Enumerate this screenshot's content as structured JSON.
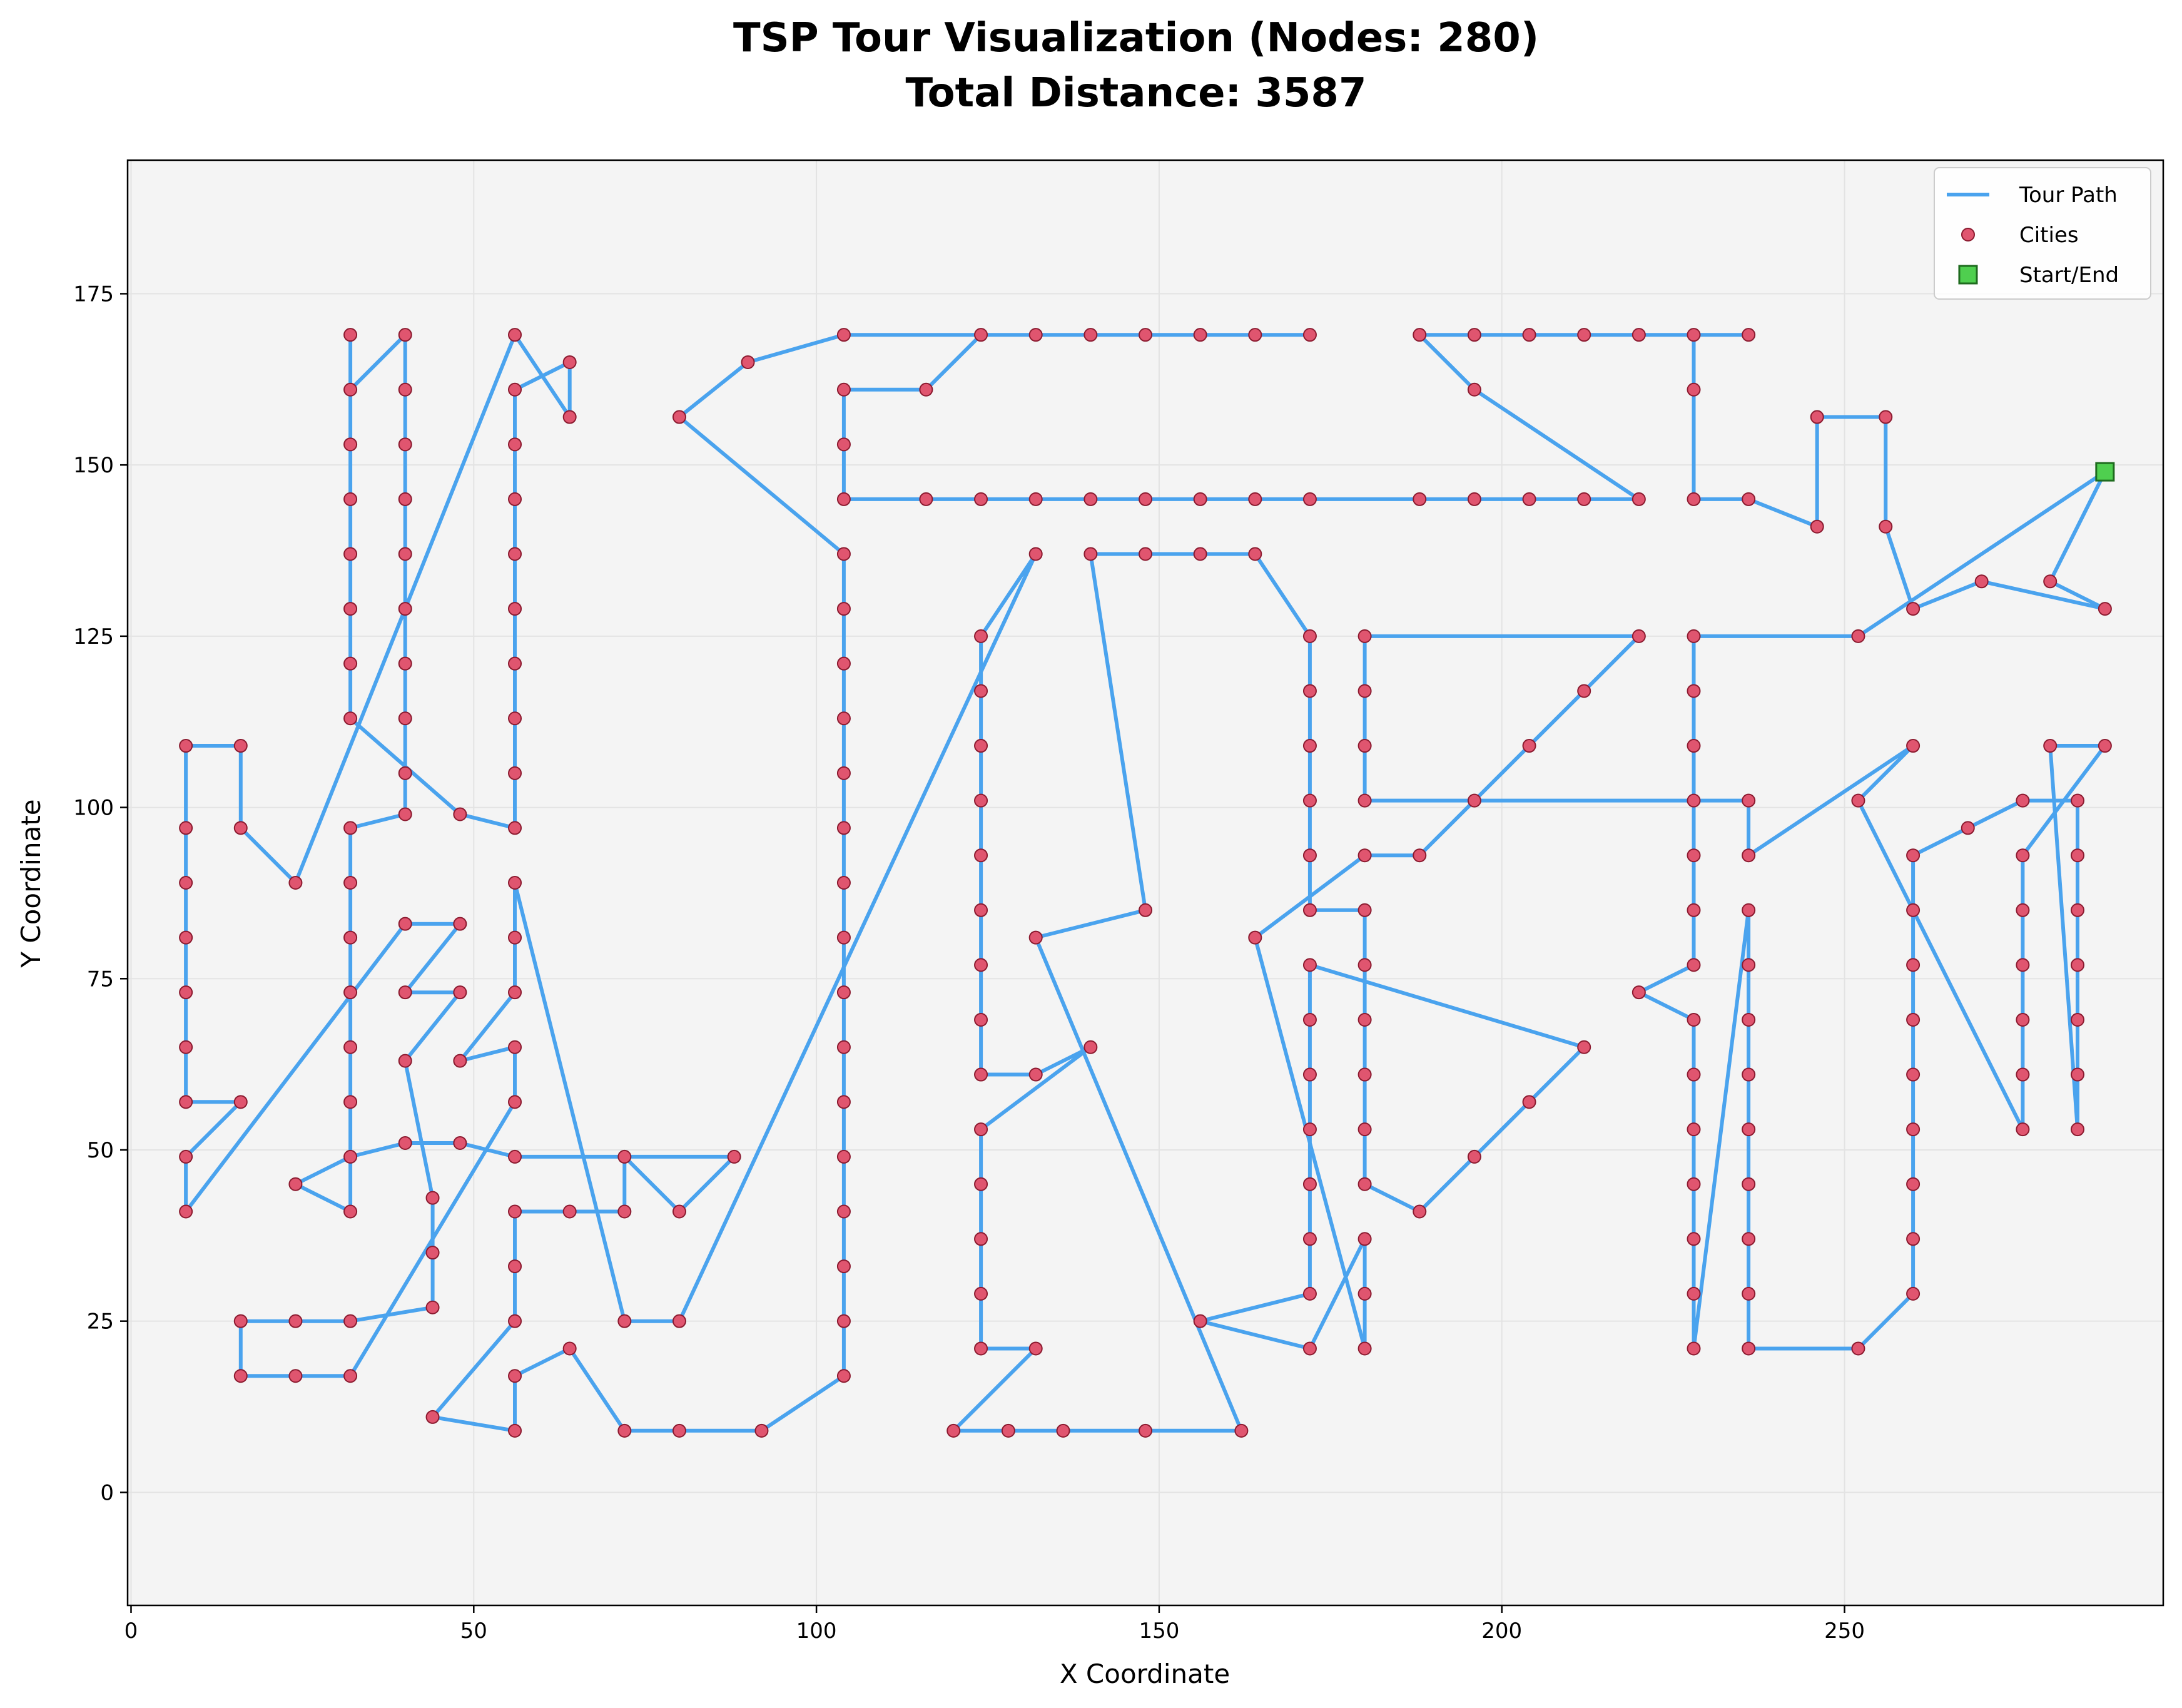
{
  "chart_data": {
    "type": "line",
    "title": "TSP Tour Visualization (Nodes: 280)",
    "subtitle": "Total Distance: 3587",
    "xlabel": "X Coordinate",
    "ylabel": "Y Coordinate",
    "xlim": [
      -0.5,
      296.5
    ],
    "ylim": [
      -16.5,
      194.5
    ],
    "xticks": [
      0,
      50,
      100,
      150,
      200,
      250
    ],
    "yticks": [
      0,
      25,
      50,
      75,
      100,
      125,
      150,
      175
    ],
    "grid": true,
    "legend_position": "top-right",
    "legend": [
      {
        "label": "Tour Path",
        "marker": "line"
      },
      {
        "label": "Cities",
        "marker": "circle"
      },
      {
        "label": "Start/End",
        "marker": "square"
      }
    ],
    "colors": {
      "path": "#4aa3ee",
      "city_fill": "#e0556f",
      "city_edge": "#8b1a2f",
      "start_fill": "#4fcf4f",
      "start_edge": "#1e6b1e",
      "plot_bg": "#f4f4f4",
      "grid": "#e3e3e3"
    },
    "start": [
      288,
      149
    ],
    "tour": [
      [
        288,
        149
      ],
      [
        280,
        133
      ],
      [
        288,
        129
      ],
      [
        270,
        133
      ],
      [
        260,
        129
      ],
      [
        256,
        141
      ],
      [
        256,
        157
      ],
      [
        246,
        157
      ],
      [
        246,
        141
      ],
      [
        236,
        145
      ],
      [
        228,
        145
      ],
      [
        228,
        161
      ],
      [
        228,
        169
      ],
      [
        236,
        169
      ],
      [
        220,
        169
      ],
      [
        212,
        169
      ],
      [
        204,
        169
      ],
      [
        196,
        169
      ],
      [
        188,
        169
      ],
      [
        196,
        161
      ],
      [
        220,
        145
      ],
      [
        212,
        145
      ],
      [
        204,
        145
      ],
      [
        196,
        145
      ],
      [
        188,
        145
      ],
      [
        172,
        145
      ],
      [
        164,
        145
      ],
      [
        156,
        145
      ],
      [
        148,
        145
      ],
      [
        140,
        145
      ],
      [
        132,
        145
      ],
      [
        124,
        145
      ],
      [
        116,
        145
      ],
      [
        104,
        145
      ],
      [
        104,
        153
      ],
      [
        104,
        161
      ],
      [
        116,
        161
      ],
      [
        124,
        169
      ],
      [
        132,
        169
      ],
      [
        140,
        169
      ],
      [
        148,
        169
      ],
      [
        156,
        169
      ],
      [
        164,
        169
      ],
      [
        172,
        169
      ],
      [
        104,
        169
      ],
      [
        90,
        165
      ],
      [
        80,
        157
      ],
      [
        104,
        137
      ],
      [
        104,
        129
      ],
      [
        104,
        121
      ],
      [
        104,
        113
      ],
      [
        104,
        105
      ],
      [
        104,
        97
      ],
      [
        104,
        89
      ],
      [
        104,
        81
      ],
      [
        104,
        73
      ],
      [
        104,
        65
      ],
      [
        104,
        57
      ],
      [
        104,
        49
      ],
      [
        104,
        41
      ],
      [
        104,
        33
      ],
      [
        104,
        25
      ],
      [
        104,
        17
      ],
      [
        92,
        9
      ],
      [
        80,
        9
      ],
      [
        72,
        9
      ],
      [
        64,
        21
      ],
      [
        56,
        17
      ],
      [
        56,
        9
      ],
      [
        44,
        11
      ],
      [
        56,
        25
      ],
      [
        56,
        33
      ],
      [
        56,
        41
      ],
      [
        64,
        41
      ],
      [
        72,
        41
      ],
      [
        72,
        49
      ],
      [
        80,
        41
      ],
      [
        88,
        49
      ],
      [
        56,
        49
      ],
      [
        48,
        51
      ],
      [
        40,
        51
      ],
      [
        32,
        49
      ],
      [
        24,
        45
      ],
      [
        32,
        41
      ],
      [
        32,
        49
      ],
      [
        32,
        57
      ],
      [
        32,
        65
      ],
      [
        32,
        73
      ],
      [
        32,
        81
      ],
      [
        32,
        89
      ],
      [
        32,
        97
      ],
      [
        40,
        99
      ],
      [
        40,
        105
      ],
      [
        40,
        113
      ],
      [
        40,
        121
      ],
      [
        40,
        129
      ],
      [
        40,
        137
      ],
      [
        40,
        145
      ],
      [
        40,
        153
      ],
      [
        40,
        161
      ],
      [
        40,
        169
      ],
      [
        32,
        161
      ],
      [
        32,
        169
      ],
      [
        32,
        153
      ],
      [
        32,
        145
      ],
      [
        32,
        137
      ],
      [
        32,
        129
      ],
      [
        32,
        121
      ],
      [
        32,
        113
      ],
      [
        48,
        99
      ],
      [
        56,
        97
      ],
      [
        56,
        105
      ],
      [
        56,
        113
      ],
      [
        56,
        121
      ],
      [
        56,
        129
      ],
      [
        56,
        137
      ],
      [
        56,
        145
      ],
      [
        56,
        153
      ],
      [
        56,
        161
      ],
      [
        64,
        165
      ],
      [
        64,
        157
      ],
      [
        56,
        169
      ],
      [
        24,
        89
      ],
      [
        16,
        97
      ],
      [
        16,
        109
      ],
      [
        8,
        109
      ],
      [
        8,
        97
      ],
      [
        8,
        89
      ],
      [
        8,
        81
      ],
      [
        8,
        73
      ],
      [
        8,
        65
      ],
      [
        8,
        57
      ],
      [
        16,
        57
      ],
      [
        8,
        49
      ],
      [
        8,
        41
      ],
      [
        40,
        83
      ],
      [
        48,
        83
      ],
      [
        40,
        73
      ],
      [
        48,
        73
      ],
      [
        40,
        63
      ],
      [
        44,
        43
      ],
      [
        44,
        35
      ],
      [
        44,
        27
      ],
      [
        32,
        25
      ],
      [
        24,
        25
      ],
      [
        16,
        25
      ],
      [
        16,
        17
      ],
      [
        24,
        17
      ],
      [
        32,
        17
      ],
      [
        56,
        57
      ],
      [
        56,
        65
      ],
      [
        48,
        63
      ],
      [
        56,
        73
      ],
      [
        56,
        81
      ],
      [
        56,
        89
      ],
      [
        72,
        25
      ],
      [
        80,
        25
      ],
      [
        132,
        137
      ],
      [
        124,
        125
      ],
      [
        124,
        117
      ],
      [
        124,
        109
      ],
      [
        124,
        101
      ],
      [
        124,
        93
      ],
      [
        124,
        85
      ],
      [
        124,
        77
      ],
      [
        124,
        69
      ],
      [
        124,
        61
      ],
      [
        132,
        61
      ],
      [
        140,
        65
      ],
      [
        124,
        53
      ],
      [
        124,
        45
      ],
      [
        124,
        37
      ],
      [
        124,
        29
      ],
      [
        124,
        21
      ],
      [
        132,
        21
      ],
      [
        120,
        9
      ],
      [
        128,
        9
      ],
      [
        136,
        9
      ],
      [
        148,
        9
      ],
      [
        162,
        9
      ],
      [
        132,
        81
      ],
      [
        148,
        85
      ],
      [
        140,
        137
      ],
      [
        148,
        137
      ],
      [
        156,
        137
      ],
      [
        164,
        137
      ],
      [
        172,
        125
      ],
      [
        172,
        117
      ],
      [
        172,
        109
      ],
      [
        172,
        101
      ],
      [
        172,
        93
      ],
      [
        172,
        85
      ],
      [
        180,
        85
      ],
      [
        180,
        77
      ],
      [
        180,
        69
      ],
      [
        180,
        61
      ],
      [
        180,
        53
      ],
      [
        180,
        45
      ],
      [
        188,
        41
      ],
      [
        196,
        49
      ],
      [
        204,
        57
      ],
      [
        212,
        65
      ],
      [
        172,
        77
      ],
      [
        172,
        69
      ],
      [
        172,
        61
      ],
      [
        172,
        53
      ],
      [
        172,
        45
      ],
      [
        172,
        37
      ],
      [
        172,
        29
      ],
      [
        156,
        25
      ],
      [
        172,
        21
      ],
      [
        180,
        37
      ],
      [
        180,
        29
      ],
      [
        180,
        21
      ],
      [
        164,
        81
      ],
      [
        180,
        93
      ],
      [
        188,
        93
      ],
      [
        196,
        101
      ],
      [
        204,
        109
      ],
      [
        212,
        117
      ],
      [
        220,
        125
      ],
      [
        180,
        125
      ],
      [
        180,
        117
      ],
      [
        180,
        109
      ],
      [
        180,
        101
      ],
      [
        228,
        101
      ],
      [
        236,
        101
      ],
      [
        236,
        93
      ],
      [
        260,
        109
      ],
      [
        252,
        101
      ],
      [
        276,
        53
      ],
      [
        276,
        61
      ],
      [
        276,
        69
      ],
      [
        276,
        77
      ],
      [
        276,
        85
      ],
      [
        276,
        93
      ],
      [
        288,
        109
      ],
      [
        280,
        109
      ],
      [
        284,
        53
      ],
      [
        284,
        61
      ],
      [
        284,
        69
      ],
      [
        284,
        77
      ],
      [
        284,
        85
      ],
      [
        284,
        93
      ],
      [
        284,
        101
      ],
      [
        276,
        101
      ],
      [
        268,
        97
      ],
      [
        260,
        93
      ],
      [
        260,
        85
      ],
      [
        260,
        77
      ],
      [
        260,
        69
      ],
      [
        260,
        61
      ],
      [
        260,
        53
      ],
      [
        260,
        45
      ],
      [
        260,
        37
      ],
      [
        260,
        29
      ],
      [
        252,
        21
      ],
      [
        236,
        21
      ],
      [
        236,
        29
      ],
      [
        236,
        37
      ],
      [
        236,
        45
      ],
      [
        236,
        53
      ],
      [
        236,
        61
      ],
      [
        236,
        69
      ],
      [
        236,
        77
      ],
      [
        236,
        85
      ],
      [
        228,
        21
      ],
      [
        228,
        29
      ],
      [
        228,
        37
      ],
      [
        228,
        45
      ],
      [
        228,
        53
      ],
      [
        228,
        61
      ],
      [
        228,
        69
      ],
      [
        220,
        73
      ],
      [
        228,
        77
      ],
      [
        228,
        85
      ],
      [
        228,
        93
      ],
      [
        228,
        109
      ],
      [
        228,
        117
      ],
      [
        228,
        125
      ],
      [
        252,
        125
      ],
      [
        288,
        149
      ]
    ]
  }
}
